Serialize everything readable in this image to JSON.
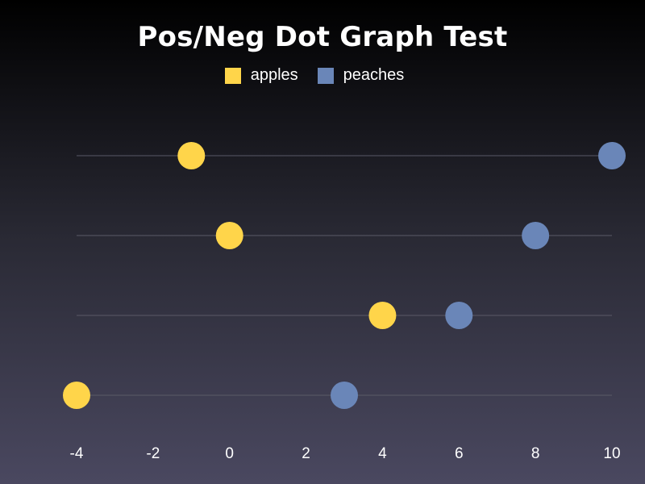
{
  "chart_data": {
    "type": "scatter",
    "title": "Pos/Neg Dot Graph Test",
    "xlabel": "",
    "ylabel": "",
    "xlim": [
      -4,
      10
    ],
    "xticks": [
      "-4",
      "-2",
      "0",
      "2",
      "4",
      "6",
      "8",
      "10"
    ],
    "grid": "horizontal lines per row",
    "legend_position": "top-center",
    "rows": 4,
    "series": [
      {
        "name": "apples",
        "color": "#FFD54A",
        "values": [
          -1,
          0,
          4,
          -4
        ]
      },
      {
        "name": "peaches",
        "color": "#6A86B8",
        "values": [
          10,
          8,
          6,
          3
        ]
      }
    ]
  }
}
